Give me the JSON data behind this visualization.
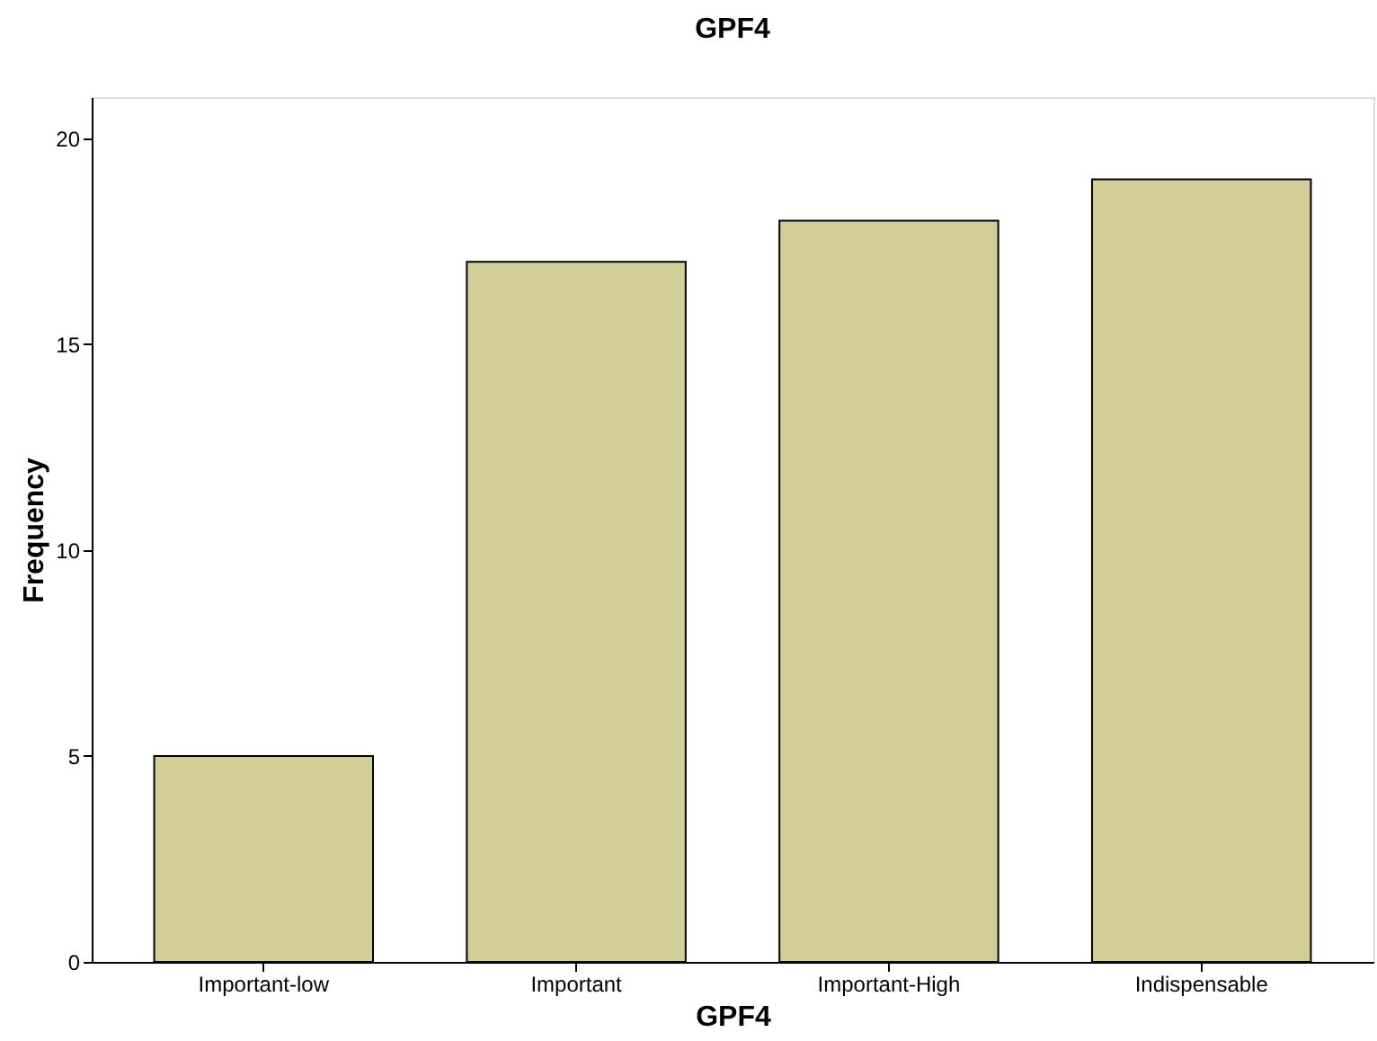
{
  "chart_data": {
    "type": "bar",
    "title": "GPF4",
    "xlabel": "GPF4",
    "ylabel": "Frequency",
    "categories": [
      "Important-low",
      "Important",
      "Important-High",
      "Indispensable"
    ],
    "values": [
      5,
      17,
      18,
      19
    ],
    "color": "#d3ce97",
    "ylim": [
      0,
      21
    ],
    "yticks": [
      0,
      5,
      10,
      15,
      20
    ]
  }
}
